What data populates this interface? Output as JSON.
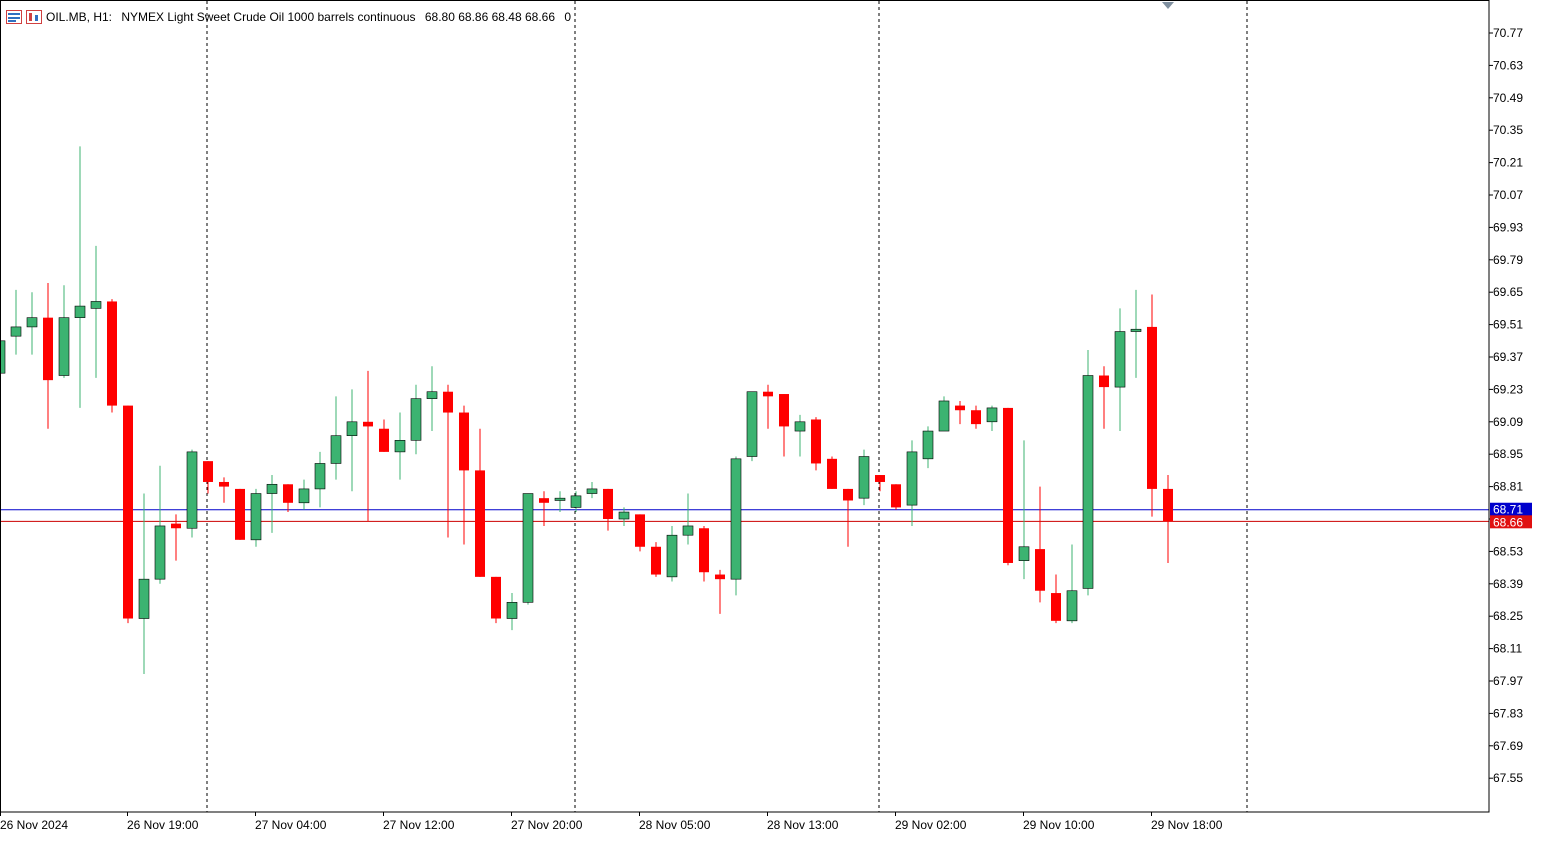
{
  "header": {
    "symbol": "OIL.MB, H1:",
    "description": "NYMEX Light Sweet Crude Oil 1000 barrels continuous",
    "ohlc": "68.80 68.86 68.48 68.66",
    "volume": "0"
  },
  "colors": {
    "bull": "#3cb371",
    "bear": "#ff0000",
    "ask_line": "#0000cc",
    "bid_line": "#cc0000"
  },
  "price_tags": {
    "ask": "68.71",
    "bid": "68.66"
  },
  "chart_data": {
    "type": "candlestick",
    "timeframe": "H1",
    "y_ticks": [
      "70.77",
      "70.63",
      "70.49",
      "70.35",
      "70.21",
      "70.07",
      "69.93",
      "69.79",
      "69.65",
      "69.51",
      "69.37",
      "69.23",
      "69.09",
      "68.95",
      "68.81",
      "68.67",
      "68.53",
      "68.39",
      "68.25",
      "68.11",
      "67.97",
      "67.83",
      "67.69",
      "67.55"
    ],
    "x_labels": [
      "26 Nov 2024",
      "26 Nov 19:00",
      "27 Nov 04:00",
      "27 Nov 12:00",
      "27 Nov 20:00",
      "28 Nov 05:00",
      "28 Nov 13:00",
      "29 Nov 02:00",
      "29 Nov 10:00",
      "29 Nov 18:00"
    ],
    "ask": 68.71,
    "bid": 68.66,
    "candles": [
      {
        "o": 69.3,
        "h": 69.45,
        "l": 69.28,
        "c": 69.44
      },
      {
        "o": 69.46,
        "h": 69.66,
        "l": 69.38,
        "c": 69.5
      },
      {
        "o": 69.5,
        "h": 69.65,
        "l": 69.38,
        "c": 69.54
      },
      {
        "o": 69.54,
        "h": 69.69,
        "l": 69.06,
        "c": 69.27
      },
      {
        "o": 69.29,
        "h": 69.68,
        "l": 69.28,
        "c": 69.54
      },
      {
        "o": 69.54,
        "h": 70.28,
        "l": 69.15,
        "c": 69.59
      },
      {
        "o": 69.58,
        "h": 69.85,
        "l": 69.28,
        "c": 69.61
      },
      {
        "o": 69.61,
        "h": 69.62,
        "l": 69.13,
        "c": 69.16
      },
      {
        "o": 69.16,
        "h": 69.16,
        "l": 68.22,
        "c": 68.24
      },
      {
        "o": 68.24,
        "h": 68.78,
        "l": 68.0,
        "c": 68.41
      },
      {
        "o": 68.41,
        "h": 68.9,
        "l": 68.39,
        "c": 68.64
      },
      {
        "o": 68.65,
        "h": 68.69,
        "l": 68.49,
        "c": 68.63
      },
      {
        "o": 68.63,
        "h": 68.97,
        "l": 68.59,
        "c": 68.96
      },
      {
        "o": 68.92,
        "h": 68.92,
        "l": 68.78,
        "c": 68.83
      },
      {
        "o": 68.83,
        "h": 68.85,
        "l": 68.74,
        "c": 68.81
      },
      {
        "o": 68.8,
        "h": 68.8,
        "l": 68.58,
        "c": 68.58
      },
      {
        "o": 68.58,
        "h": 68.8,
        "l": 68.55,
        "c": 68.78
      },
      {
        "o": 68.78,
        "h": 68.86,
        "l": 68.61,
        "c": 68.82
      },
      {
        "o": 68.82,
        "h": 68.82,
        "l": 68.7,
        "c": 68.74
      },
      {
        "o": 68.74,
        "h": 68.84,
        "l": 68.71,
        "c": 68.8
      },
      {
        "o": 68.8,
        "h": 68.96,
        "l": 68.72,
        "c": 68.91
      },
      {
        "o": 68.91,
        "h": 69.2,
        "l": 68.84,
        "c": 69.03
      },
      {
        "o": 69.03,
        "h": 69.23,
        "l": 68.79,
        "c": 69.09
      },
      {
        "o": 69.09,
        "h": 69.31,
        "l": 68.66,
        "c": 69.07
      },
      {
        "o": 69.06,
        "h": 69.1,
        "l": 68.96,
        "c": 68.96
      },
      {
        "o": 68.96,
        "h": 69.13,
        "l": 68.84,
        "c": 69.01
      },
      {
        "o": 69.01,
        "h": 69.25,
        "l": 68.95,
        "c": 69.19
      },
      {
        "o": 69.19,
        "h": 69.33,
        "l": 69.05,
        "c": 69.22
      },
      {
        "o": 69.22,
        "h": 69.25,
        "l": 68.59,
        "c": 69.13
      },
      {
        "o": 69.13,
        "h": 69.16,
        "l": 68.56,
        "c": 68.88
      },
      {
        "o": 68.88,
        "h": 69.06,
        "l": 68.42,
        "c": 68.42
      },
      {
        "o": 68.42,
        "h": 68.42,
        "l": 68.22,
        "c": 68.24
      },
      {
        "o": 68.24,
        "h": 68.35,
        "l": 68.19,
        "c": 68.31
      },
      {
        "o": 68.31,
        "h": 68.78,
        "l": 68.3,
        "c": 68.78
      },
      {
        "o": 68.76,
        "h": 68.79,
        "l": 68.64,
        "c": 68.74
      },
      {
        "o": 68.75,
        "h": 68.79,
        "l": 68.7,
        "c": 68.76
      },
      {
        "o": 68.72,
        "h": 68.79,
        "l": 68.7,
        "c": 68.77
      },
      {
        "o": 68.78,
        "h": 68.83,
        "l": 68.76,
        "c": 68.8
      },
      {
        "o": 68.8,
        "h": 68.8,
        "l": 68.62,
        "c": 68.67
      },
      {
        "o": 68.67,
        "h": 68.72,
        "l": 68.64,
        "c": 68.7
      },
      {
        "o": 68.69,
        "h": 68.69,
        "l": 68.53,
        "c": 68.55
      },
      {
        "o": 68.55,
        "h": 68.57,
        "l": 68.42,
        "c": 68.43
      },
      {
        "o": 68.42,
        "h": 68.64,
        "l": 68.4,
        "c": 68.6
      },
      {
        "o": 68.6,
        "h": 68.78,
        "l": 68.56,
        "c": 68.64
      },
      {
        "o": 68.63,
        "h": 68.64,
        "l": 68.4,
        "c": 68.44
      },
      {
        "o": 68.43,
        "h": 68.45,
        "l": 68.26,
        "c": 68.41
      },
      {
        "o": 68.41,
        "h": 68.94,
        "l": 68.34,
        "c": 68.93
      },
      {
        "o": 68.94,
        "h": 69.22,
        "l": 68.92,
        "c": 69.22
      },
      {
        "o": 69.22,
        "h": 69.25,
        "l": 69.06,
        "c": 69.2
      },
      {
        "o": 69.21,
        "h": 69.21,
        "l": 68.94,
        "c": 69.07
      },
      {
        "o": 69.05,
        "h": 69.12,
        "l": 68.94,
        "c": 69.09
      },
      {
        "o": 69.1,
        "h": 69.11,
        "l": 68.88,
        "c": 68.91
      },
      {
        "o": 68.93,
        "h": 68.94,
        "l": 68.8,
        "c": 68.8
      },
      {
        "o": 68.8,
        "h": 68.8,
        "l": 68.55,
        "c": 68.75
      },
      {
        "o": 68.76,
        "h": 68.97,
        "l": 68.73,
        "c": 68.94
      },
      {
        "o": 68.86,
        "h": 68.86,
        "l": 68.79,
        "c": 68.83
      },
      {
        "o": 68.82,
        "h": 68.82,
        "l": 68.71,
        "c": 68.72
      },
      {
        "o": 68.73,
        "h": 69.01,
        "l": 68.64,
        "c": 68.96
      },
      {
        "o": 68.93,
        "h": 69.07,
        "l": 68.89,
        "c": 69.05
      },
      {
        "o": 69.05,
        "h": 69.2,
        "l": 69.05,
        "c": 69.18
      },
      {
        "o": 69.16,
        "h": 69.18,
        "l": 69.08,
        "c": 69.14
      },
      {
        "o": 69.14,
        "h": 69.16,
        "l": 69.06,
        "c": 69.08
      },
      {
        "o": 69.09,
        "h": 69.16,
        "l": 69.05,
        "c": 69.15
      },
      {
        "o": 69.15,
        "h": 69.15,
        "l": 68.47,
        "c": 68.48
      },
      {
        "o": 68.49,
        "h": 69.01,
        "l": 68.41,
        "c": 68.55
      },
      {
        "o": 68.54,
        "h": 68.81,
        "l": 68.31,
        "c": 68.36
      },
      {
        "o": 68.35,
        "h": 68.43,
        "l": 68.22,
        "c": 68.23
      },
      {
        "o": 68.23,
        "h": 68.56,
        "l": 68.22,
        "c": 68.36
      },
      {
        "o": 68.37,
        "h": 69.4,
        "l": 68.34,
        "c": 69.29
      },
      {
        "o": 69.29,
        "h": 69.33,
        "l": 69.06,
        "c": 69.24
      },
      {
        "o": 69.24,
        "h": 69.58,
        "l": 69.05,
        "c": 69.48
      },
      {
        "o": 69.48,
        "h": 69.66,
        "l": 69.28,
        "c": 69.49
      },
      {
        "o": 69.5,
        "h": 69.64,
        "l": 68.68,
        "c": 68.8
      },
      {
        "o": 68.8,
        "h": 68.86,
        "l": 68.48,
        "c": 68.66
      }
    ]
  }
}
